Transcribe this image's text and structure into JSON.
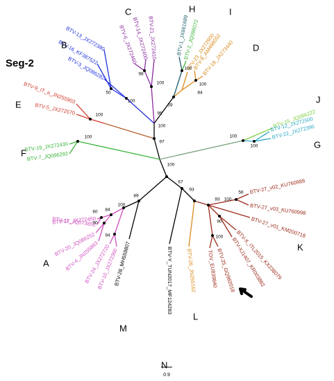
{
  "title": "Seg-2",
  "scale_label": "0.9",
  "clusters": [
    "A",
    "B",
    "C",
    "D",
    "E",
    "F",
    "G",
    "H",
    "I",
    "J",
    "K",
    "L",
    "M",
    "N"
  ],
  "leaves": [
    "BTV-13_JX272380",
    "BTV-16_KF387522",
    "BTV-3_JQ086282",
    "BTV-6_JX272460",
    "BTV-14_JX272400",
    "BTV-21_JX272410",
    "BTV-1_JX661689",
    "BTV-2_JQ086072",
    "BTV-23_JX272900",
    "BTV-8_AM498052",
    "BTV-18_JX273440",
    "BTV-9_IT_e_JN255903",
    "BTV-5_JX272570",
    "BTV-19_JX272430",
    "BTV-7_JQ086292",
    "BTV-15_JQ086222",
    "BTV-12_JX272500",
    "BTV-22_JX272390",
    "BTV-27_v02_KU760988",
    "BTV-27_v03_KU760998",
    "BTV-27_v01_KM200718",
    "BTV-X_ITL2015_KX238079",
    "BTV-XJ1407_KR003882",
    "BTV-25_GQ982018",
    "TOV_EU839840",
    "BTV-26_JN255162",
    "BTV-Y_TUN2017_MF124283",
    "BTV-28_MH559807",
    "BTV-17_JX272450",
    "BTV-11_JQ073852",
    "BTV-20_JQ086252",
    "BTV-4_JN255883",
    "BTV-24_JX272720",
    "BTV-10_JX272360"
  ],
  "bootstraps": [
    98,
    100,
    100,
    59,
    95,
    100,
    84,
    50,
    100,
    100,
    100,
    97,
    100,
    100,
    100,
    100,
    89,
    67,
    93,
    60,
    84,
    100,
    90,
    94,
    56,
    93,
    100,
    90,
    100
  ]
}
